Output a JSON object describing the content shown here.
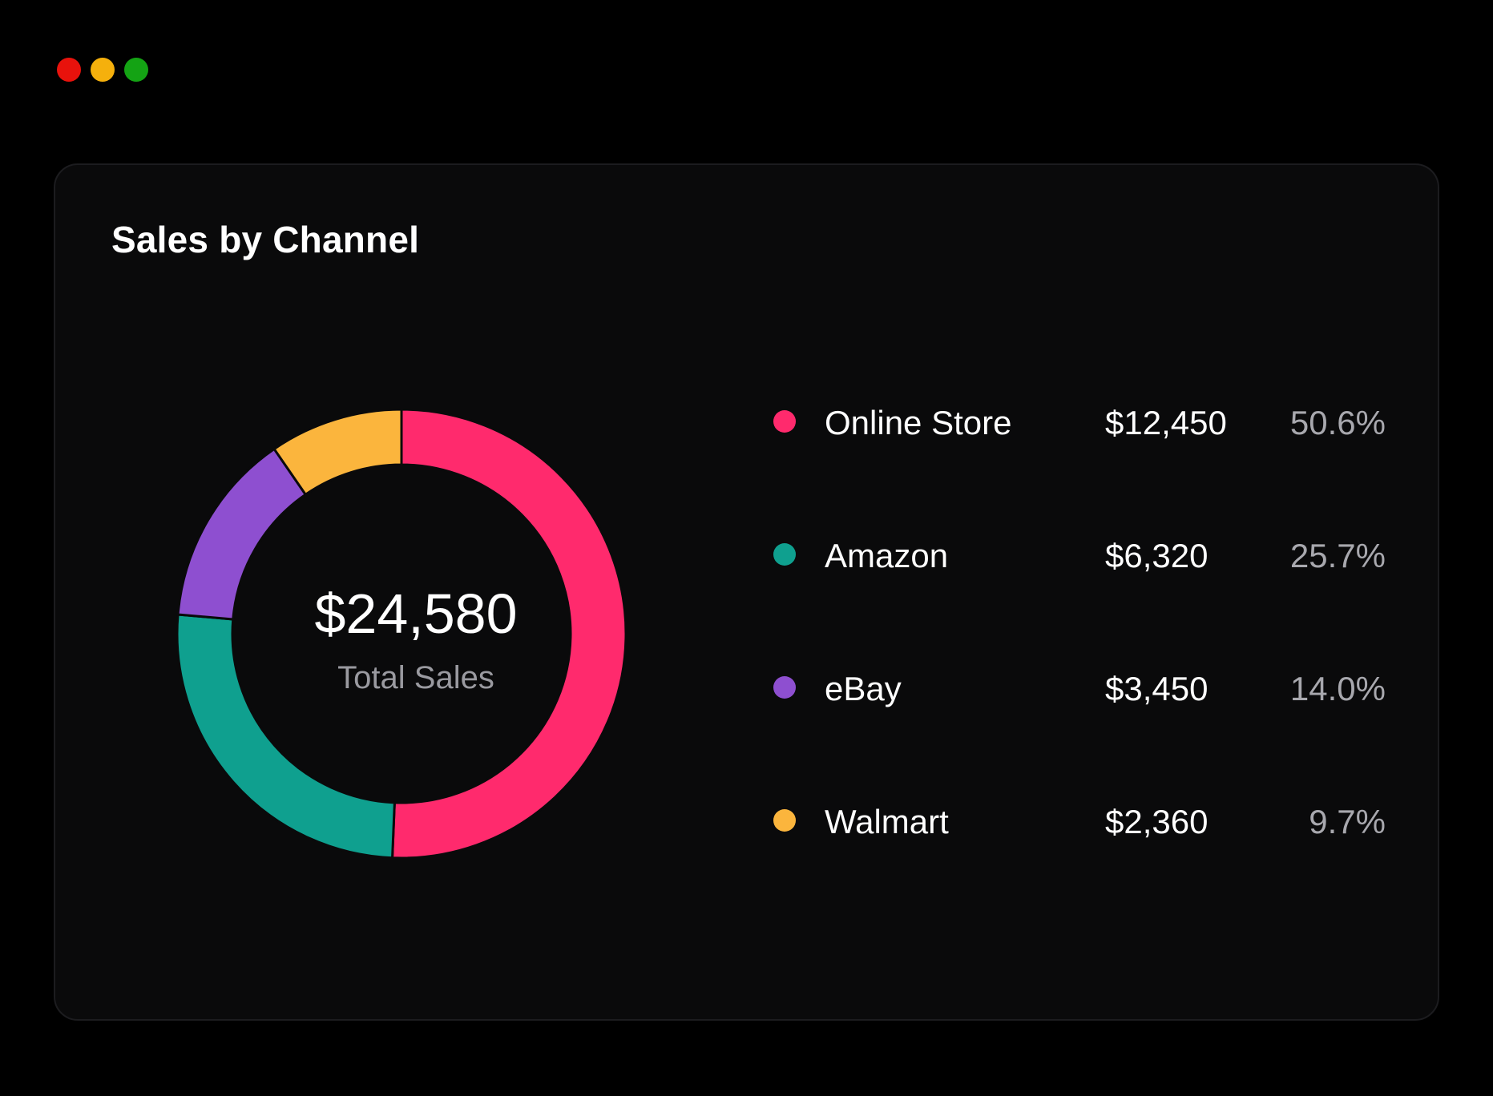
{
  "window": {
    "controls": [
      {
        "name": "close",
        "color": "#e8120c"
      },
      {
        "name": "minimize",
        "color": "#f5b00c"
      },
      {
        "name": "maximize",
        "color": "#14a314"
      }
    ]
  },
  "card": {
    "title": "Sales by Channel"
  },
  "chart_data": {
    "type": "pie",
    "variant": "donut",
    "title": "Sales by Channel",
    "center_value": "$24,580",
    "center_label": "Total Sales",
    "legend_position": "right",
    "slices": [
      {
        "label": "Online Store",
        "value": 12450,
        "value_label": "$12,450",
        "percent": 50.6,
        "percent_label": "50.6%",
        "color": "#ff2a6d"
      },
      {
        "label": "Amazon",
        "value": 6320,
        "value_label": "$6,320",
        "percent": 25.7,
        "percent_label": "25.7%",
        "color": "#0fa08f"
      },
      {
        "label": "eBay",
        "value": 3450,
        "value_label": "$3,450",
        "percent": 14.0,
        "percent_label": "14.0%",
        "color": "#8e4fd0"
      },
      {
        "label": "Walmart",
        "value": 2360,
        "value_label": "$2,360",
        "percent": 9.7,
        "percent_label": "9.7%",
        "color": "#fbb53d"
      }
    ]
  }
}
